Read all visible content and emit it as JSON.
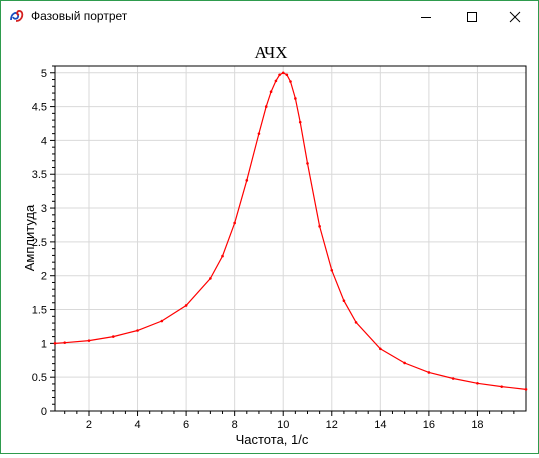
{
  "window": {
    "title": "Фазовый портрет",
    "icons": {
      "app": "phase-portrait-app-icon",
      "minimize": "minimize-icon",
      "maximize": "maximize-icon",
      "close": "close-icon"
    }
  },
  "chart_data": {
    "type": "line",
    "title": "АЧХ",
    "xlabel": "Частота, 1/с",
    "ylabel": "Амплитуда",
    "xlim": [
      0.6,
      20
    ],
    "ylim": [
      0,
      5.1
    ],
    "xticks": [
      2,
      4,
      6,
      8,
      10,
      12,
      14,
      16,
      18
    ],
    "yticks": [
      0,
      0.5,
      1,
      1.5,
      2,
      2.5,
      3,
      3.5,
      4,
      4.5,
      5
    ],
    "xtick_labels": [
      "2",
      "4",
      "6",
      "8",
      "10",
      "12",
      "14",
      "16",
      "18"
    ],
    "ytick_labels": [
      "0",
      "0.5",
      "1",
      "1.5",
      "2",
      "2.5",
      "3",
      "3.5",
      "4",
      "4.5",
      "5"
    ],
    "grid": true,
    "line_color": "#ff0000",
    "series": [
      {
        "x": [
          0.6,
          1,
          2,
          3,
          4,
          5,
          6,
          7,
          7.5,
          8,
          8.5,
          9,
          9.3,
          9.5,
          9.7,
          9.85,
          10,
          10.15,
          10.3,
          10.5,
          10.7,
          11,
          11.5,
          12,
          12.5,
          13,
          14,
          15,
          16,
          17,
          18,
          19,
          20
        ],
        "y": [
          1.0,
          1.01,
          1.04,
          1.1,
          1.19,
          1.33,
          1.56,
          1.96,
          2.29,
          2.78,
          3.41,
          4.1,
          4.5,
          4.72,
          4.88,
          4.97,
          5.0,
          4.97,
          4.87,
          4.62,
          4.27,
          3.66,
          2.73,
          2.08,
          1.63,
          1.31,
          0.92,
          0.71,
          0.57,
          0.48,
          0.41,
          0.36,
          0.32
        ]
      }
    ]
  }
}
